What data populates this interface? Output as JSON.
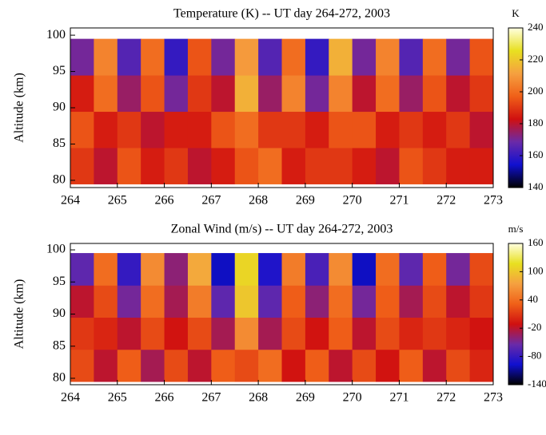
{
  "chart_data": [
    {
      "type": "heatmap",
      "title": "Temperature (K) -- UT day 264-272, 2003",
      "ylabel": "Altitude (km)",
      "colorbar_label": "K",
      "x": [
        264.25,
        264.75,
        265.25,
        265.75,
        266.25,
        266.75,
        267.25,
        267.75,
        268.25,
        268.75,
        269.25,
        269.75,
        270.25,
        270.75,
        271.25,
        271.75,
        272.25,
        272.75
      ],
      "y": [
        82,
        87,
        92,
        97
      ],
      "z": [
        [
          190,
          180,
          195,
          185,
          190,
          180,
          185,
          195,
          200,
          185,
          190,
          190,
          185,
          180,
          195,
          190,
          185,
          185
        ],
        [
          195,
          185,
          190,
          180,
          185,
          185,
          195,
          200,
          190,
          190,
          185,
          195,
          195,
          185,
          190,
          185,
          190,
          180
        ],
        [
          185,
          200,
          175,
          195,
          170,
          190,
          180,
          215,
          175,
          205,
          170,
          205,
          180,
          200,
          175,
          195,
          180,
          190
        ],
        [
          170,
          205,
          165,
          200,
          160,
          195,
          170,
          210,
          165,
          200,
          160,
          215,
          170,
          205,
          165,
          200,
          170,
          195
        ]
      ],
      "xlim": [
        264,
        273
      ],
      "xticks": [
        264,
        265,
        266,
        267,
        268,
        269,
        270,
        271,
        272,
        273
      ],
      "ylim": [
        79,
        101
      ],
      "yticks": [
        80,
        85,
        90,
        95,
        100
      ],
      "zlim": [
        140,
        240
      ],
      "zticks": [
        140,
        160,
        180,
        200,
        220,
        240
      ],
      "colormap": [
        "#000000",
        "#1010d0",
        "#6a2aa8",
        "#d01010",
        "#f06018",
        "#f5a040",
        "#e8e020",
        "#ffffe0"
      ]
    },
    {
      "type": "heatmap",
      "title": "Zonal Wind (m/s) -- UT day 264-272, 2003",
      "ylabel": "Altitude (km)",
      "colorbar_label": "m/s",
      "x": [
        264.25,
        264.75,
        265.25,
        265.75,
        266.25,
        266.75,
        267.25,
        267.75,
        268.25,
        268.75,
        269.25,
        269.75,
        270.25,
        270.75,
        271.25,
        271.75,
        272.25,
        272.75
      ],
      "y": [
        82,
        87,
        92,
        97
      ],
      "z": [
        [
          20,
          -20,
          30,
          -30,
          20,
          -20,
          30,
          20,
          40,
          -10,
          30,
          -20,
          20,
          -10,
          30,
          -20,
          20,
          0
        ],
        [
          10,
          0,
          -20,
          20,
          -10,
          20,
          -30,
          60,
          -30,
          20,
          -10,
          30,
          -20,
          20,
          0,
          10,
          0,
          -10
        ],
        [
          -20,
          20,
          -50,
          40,
          -30,
          50,
          -60,
          100,
          -60,
          30,
          -40,
          40,
          -50,
          30,
          -30,
          20,
          -20,
          10
        ],
        [
          -60,
          40,
          -80,
          60,
          -40,
          80,
          -100,
          110,
          -90,
          50,
          -70,
          60,
          -100,
          40,
          -60,
          30,
          -50,
          20
        ]
      ],
      "xlim": [
        264,
        273
      ],
      "xticks": [
        264,
        265,
        266,
        267,
        268,
        269,
        270,
        271,
        272,
        273
      ],
      "ylim": [
        79,
        101
      ],
      "yticks": [
        80,
        85,
        90,
        95,
        100
      ],
      "zlim": [
        -140,
        160
      ],
      "zticks": [
        -140,
        -80,
        -20,
        40,
        100,
        160
      ],
      "colormap": [
        "#000000",
        "#1010d0",
        "#6a2aa8",
        "#d01010",
        "#f06018",
        "#f5a040",
        "#e8e020",
        "#ffffe0"
      ]
    }
  ]
}
